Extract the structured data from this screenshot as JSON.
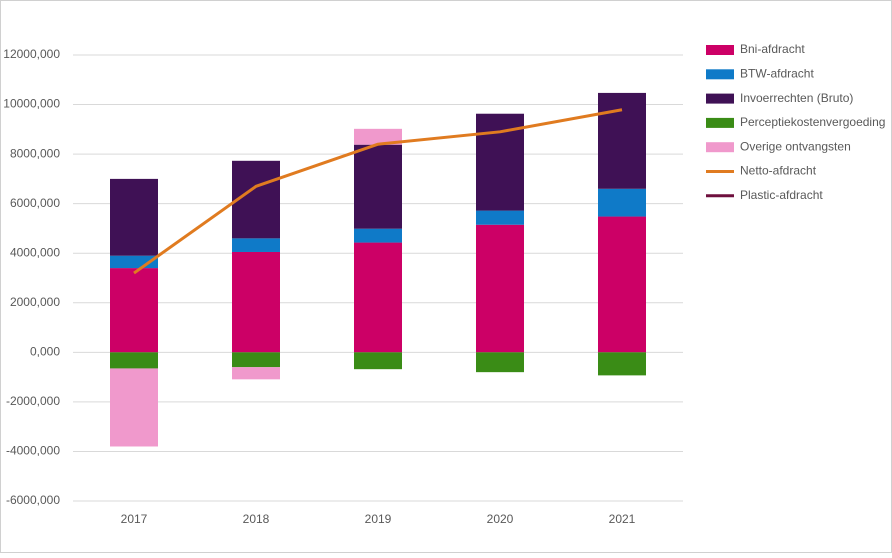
{
  "chart_data": {
    "type": "bar",
    "stacked": true,
    "categories": [
      "2017",
      "2018",
      "2019",
      "2020",
      "2021"
    ],
    "series": [
      {
        "name": "Bni-afdracht",
        "color": "#cc0066",
        "values": [
          3400,
          4050,
          4430,
          5150,
          5480
        ]
      },
      {
        "name": "BTW-afdracht",
        "color": "#0f7ac8",
        "values": [
          500,
          550,
          560,
          570,
          1120
        ]
      },
      {
        "name": "Invoerrechten (Bruto)",
        "color": "#3f1155",
        "values": [
          3100,
          3130,
          3390,
          3910,
          3870
        ]
      },
      {
        "name": "Perceptiekostenvergoeding",
        "color": "#3a8c16",
        "values": [
          -650,
          -600,
          -680,
          -800,
          -930
        ]
      },
      {
        "name": "Overige ontvangsten",
        "color": "#f099cc",
        "values": [
          -3150,
          -490,
          640,
          0,
          0
        ]
      },
      {
        "name": "Netto-afdracht",
        "color": "#e07b20",
        "type": "line",
        "values": [
          3200,
          6700,
          8400,
          8900,
          9790
        ]
      },
      {
        "name": "Plastic-afdracht",
        "color": "#6e0f3d",
        "type": "line",
        "values": [
          null,
          null,
          null,
          null,
          null
        ]
      }
    ],
    "ylim": [
      -6000,
      12000
    ],
    "yticks": [
      {
        "value": -6000,
        "label": "-6000,000"
      },
      {
        "value": -4000,
        "label": "-4000,000"
      },
      {
        "value": -2000,
        "label": "-2000,000"
      },
      {
        "value": 0,
        "label": "0,000"
      },
      {
        "value": 2000,
        "label": "2000,000"
      },
      {
        "value": 4000,
        "label": "4000,000"
      },
      {
        "value": 6000,
        "label": "6000,000"
      },
      {
        "value": 8000,
        "label": "8000,000"
      },
      {
        "value": 10000,
        "label": "10000,000"
      },
      {
        "value": 12000,
        "label": "12000,000"
      }
    ],
    "grid": true,
    "legend": "right"
  }
}
